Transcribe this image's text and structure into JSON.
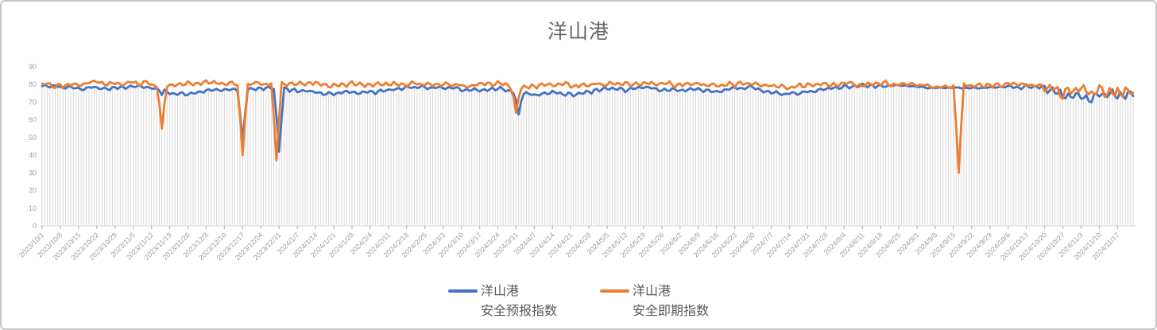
{
  "chart": {
    "title": "洋山港"
  },
  "legend": {
    "items": [
      {
        "name": "forecast",
        "line1": "洋山港",
        "line2": "安全预报指数",
        "color": "#4472C4"
      },
      {
        "name": "spot",
        "line1": "洋山港",
        "line2": "安全即期指数",
        "color": "#ED7D31"
      }
    ]
  },
  "chart_data": {
    "type": "line",
    "title": "洋山港",
    "xlabel": "",
    "ylabel": "",
    "ylim": [
      0,
      90
    ],
    "y_ticks": [
      0,
      10,
      20,
      30,
      40,
      50,
      60,
      70,
      80,
      90
    ],
    "grid": "vertical-drop-lines-per-day",
    "legend_position": "bottom-center",
    "x_frequency": "daily",
    "start_date": "2023/10/1",
    "n_days": 420,
    "tick_interval_days": 7,
    "x_tick_labels": [
      "2023/10/1",
      "2023/10/8",
      "2023/10/15",
      "2023/10/22",
      "2023/10/29",
      "2023/11/5",
      "2023/11/12",
      "2023/11/19",
      "2023/11/26",
      "2023/12/3",
      "2023/12/10",
      "2023/12/17",
      "2023/12/24",
      "2023/12/31",
      "2024/1/7",
      "2024/1/14",
      "2024/1/21",
      "2024/1/28",
      "2024/2/4",
      "2024/2/11",
      "2024/2/18",
      "2024/2/25",
      "2024/3/3",
      "2024/3/10",
      "2024/3/17",
      "2024/3/24",
      "2024/3/31",
      "2024/4/7",
      "2024/4/14",
      "2024/4/21",
      "2024/4/28",
      "2024/5/5",
      "2024/5/12",
      "2024/5/19",
      "2024/5/26",
      "2024/6/2",
      "2024/6/9",
      "2024/6/16",
      "2024/6/23",
      "2024/6/30",
      "2024/7/7",
      "2024/7/14",
      "2024/7/21",
      "2024/7/28",
      "2024/8/4",
      "2024/8/11",
      "2024/8/18",
      "2024/8/25",
      "2024/9/1",
      "2024/9/8",
      "2024/9/15",
      "2024/9/22",
      "2024/9/29",
      "2024/10/6",
      "2024/10/13",
      "2024/10/20",
      "2024/10/27",
      "2024/11/3",
      "2024/11/10",
      "2024/11/17"
    ],
    "series": [
      {
        "name": "洋山港安全预报指数",
        "color": "#4472C4",
        "weekly_values": [
          79.5,
          78.5,
          78,
          78.5,
          78,
          79,
          78.5,
          75,
          74.5,
          76.5,
          77,
          77.5,
          78,
          77.5,
          77,
          76,
          74.5,
          76,
          75.5,
          77,
          78,
          78.5,
          78,
          77,
          76.5,
          78,
          75,
          74.5,
          75.5,
          74.5,
          76,
          77.5,
          77,
          78,
          77.5,
          76.5,
          77.5,
          76,
          77.5,
          78,
          75.5,
          74.5,
          76,
          77.5,
          78.5,
          79.5,
          79,
          79.5,
          78.5,
          78,
          78,
          78,
          78.5,
          79,
          78.5,
          78,
          74,
          73.5,
          74.5,
          73.5
        ],
        "noise_base_amp": 1.1,
        "noise_segments": [
          [
            325,
            368,
            0.4
          ],
          [
            384,
            419,
            3.4
          ]
        ],
        "wave_phase": 0.0,
        "max_clamp": 80.5,
        "seed": 77
      },
      {
        "name": "洋山港安全即期指数",
        "color": "#ED7D31",
        "weekly_values": [
          80,
          79.5,
          80,
          81,
          80,
          81,
          80,
          79.5,
          80.5,
          81,
          80,
          80,
          80.5,
          80,
          80,
          80.5,
          79.5,
          80.5,
          79.5,
          80.5,
          80,
          80.5,
          80,
          79.5,
          80,
          80.5,
          78,
          79,
          80,
          79.5,
          80,
          80.5,
          80,
          80.5,
          80,
          79.5,
          80.5,
          79.5,
          80,
          80.5,
          79,
          78.5,
          79.5,
          80,
          80.5,
          80,
          80.5,
          80,
          79.5,
          79,
          79.5,
          79.5,
          80,
          80,
          79.5,
          79,
          76,
          75.5,
          76.5,
          75
        ],
        "noise_base_amp": 1.4,
        "noise_segments": [
          [
            384,
            419,
            3.4
          ]
        ],
        "wave_phase": 2.1,
        "max_clamp": 82.3,
        "seed": 1234
      }
    ],
    "anomalies": [
      {
        "date": "2023/11/16",
        "series": "洋山港安全即期指数",
        "value": 55
      },
      {
        "date": "2023/11/16",
        "series": "洋山港安全预报指数",
        "value": 74
      },
      {
        "date": "2023/12/17",
        "series": "洋山港安全即期指数",
        "value": 40
      },
      {
        "date": "2023/12/17",
        "series": "洋山港安全预报指数",
        "value": 48
      },
      {
        "date": "2023/12/30",
        "series": "洋山港安全即期指数",
        "value": 37
      },
      {
        "date": "2023/12/31",
        "series": "洋山港安全预报指数",
        "value": 42
      },
      {
        "date": "2024/3/31",
        "series": "洋山港安全即期指数",
        "value": 64
      },
      {
        "date": "2024/4/1",
        "series": "洋山港安全预报指数",
        "value": 63
      },
      {
        "date": "2024/9/17",
        "series": "洋山港安全即期指数",
        "value": 30
      }
    ]
  },
  "colors": {
    "forecast_line": "#4472C4",
    "spot_line": "#ED7D31",
    "drop_line": "#d9d9d9",
    "axis_line": "#d9d9d9",
    "tick_mark": "#c0c0c0",
    "axis_label": "#9e9e9e",
    "title_text": "#686868",
    "legend_text": "#595959",
    "card_border": "#c6c6c6"
  }
}
